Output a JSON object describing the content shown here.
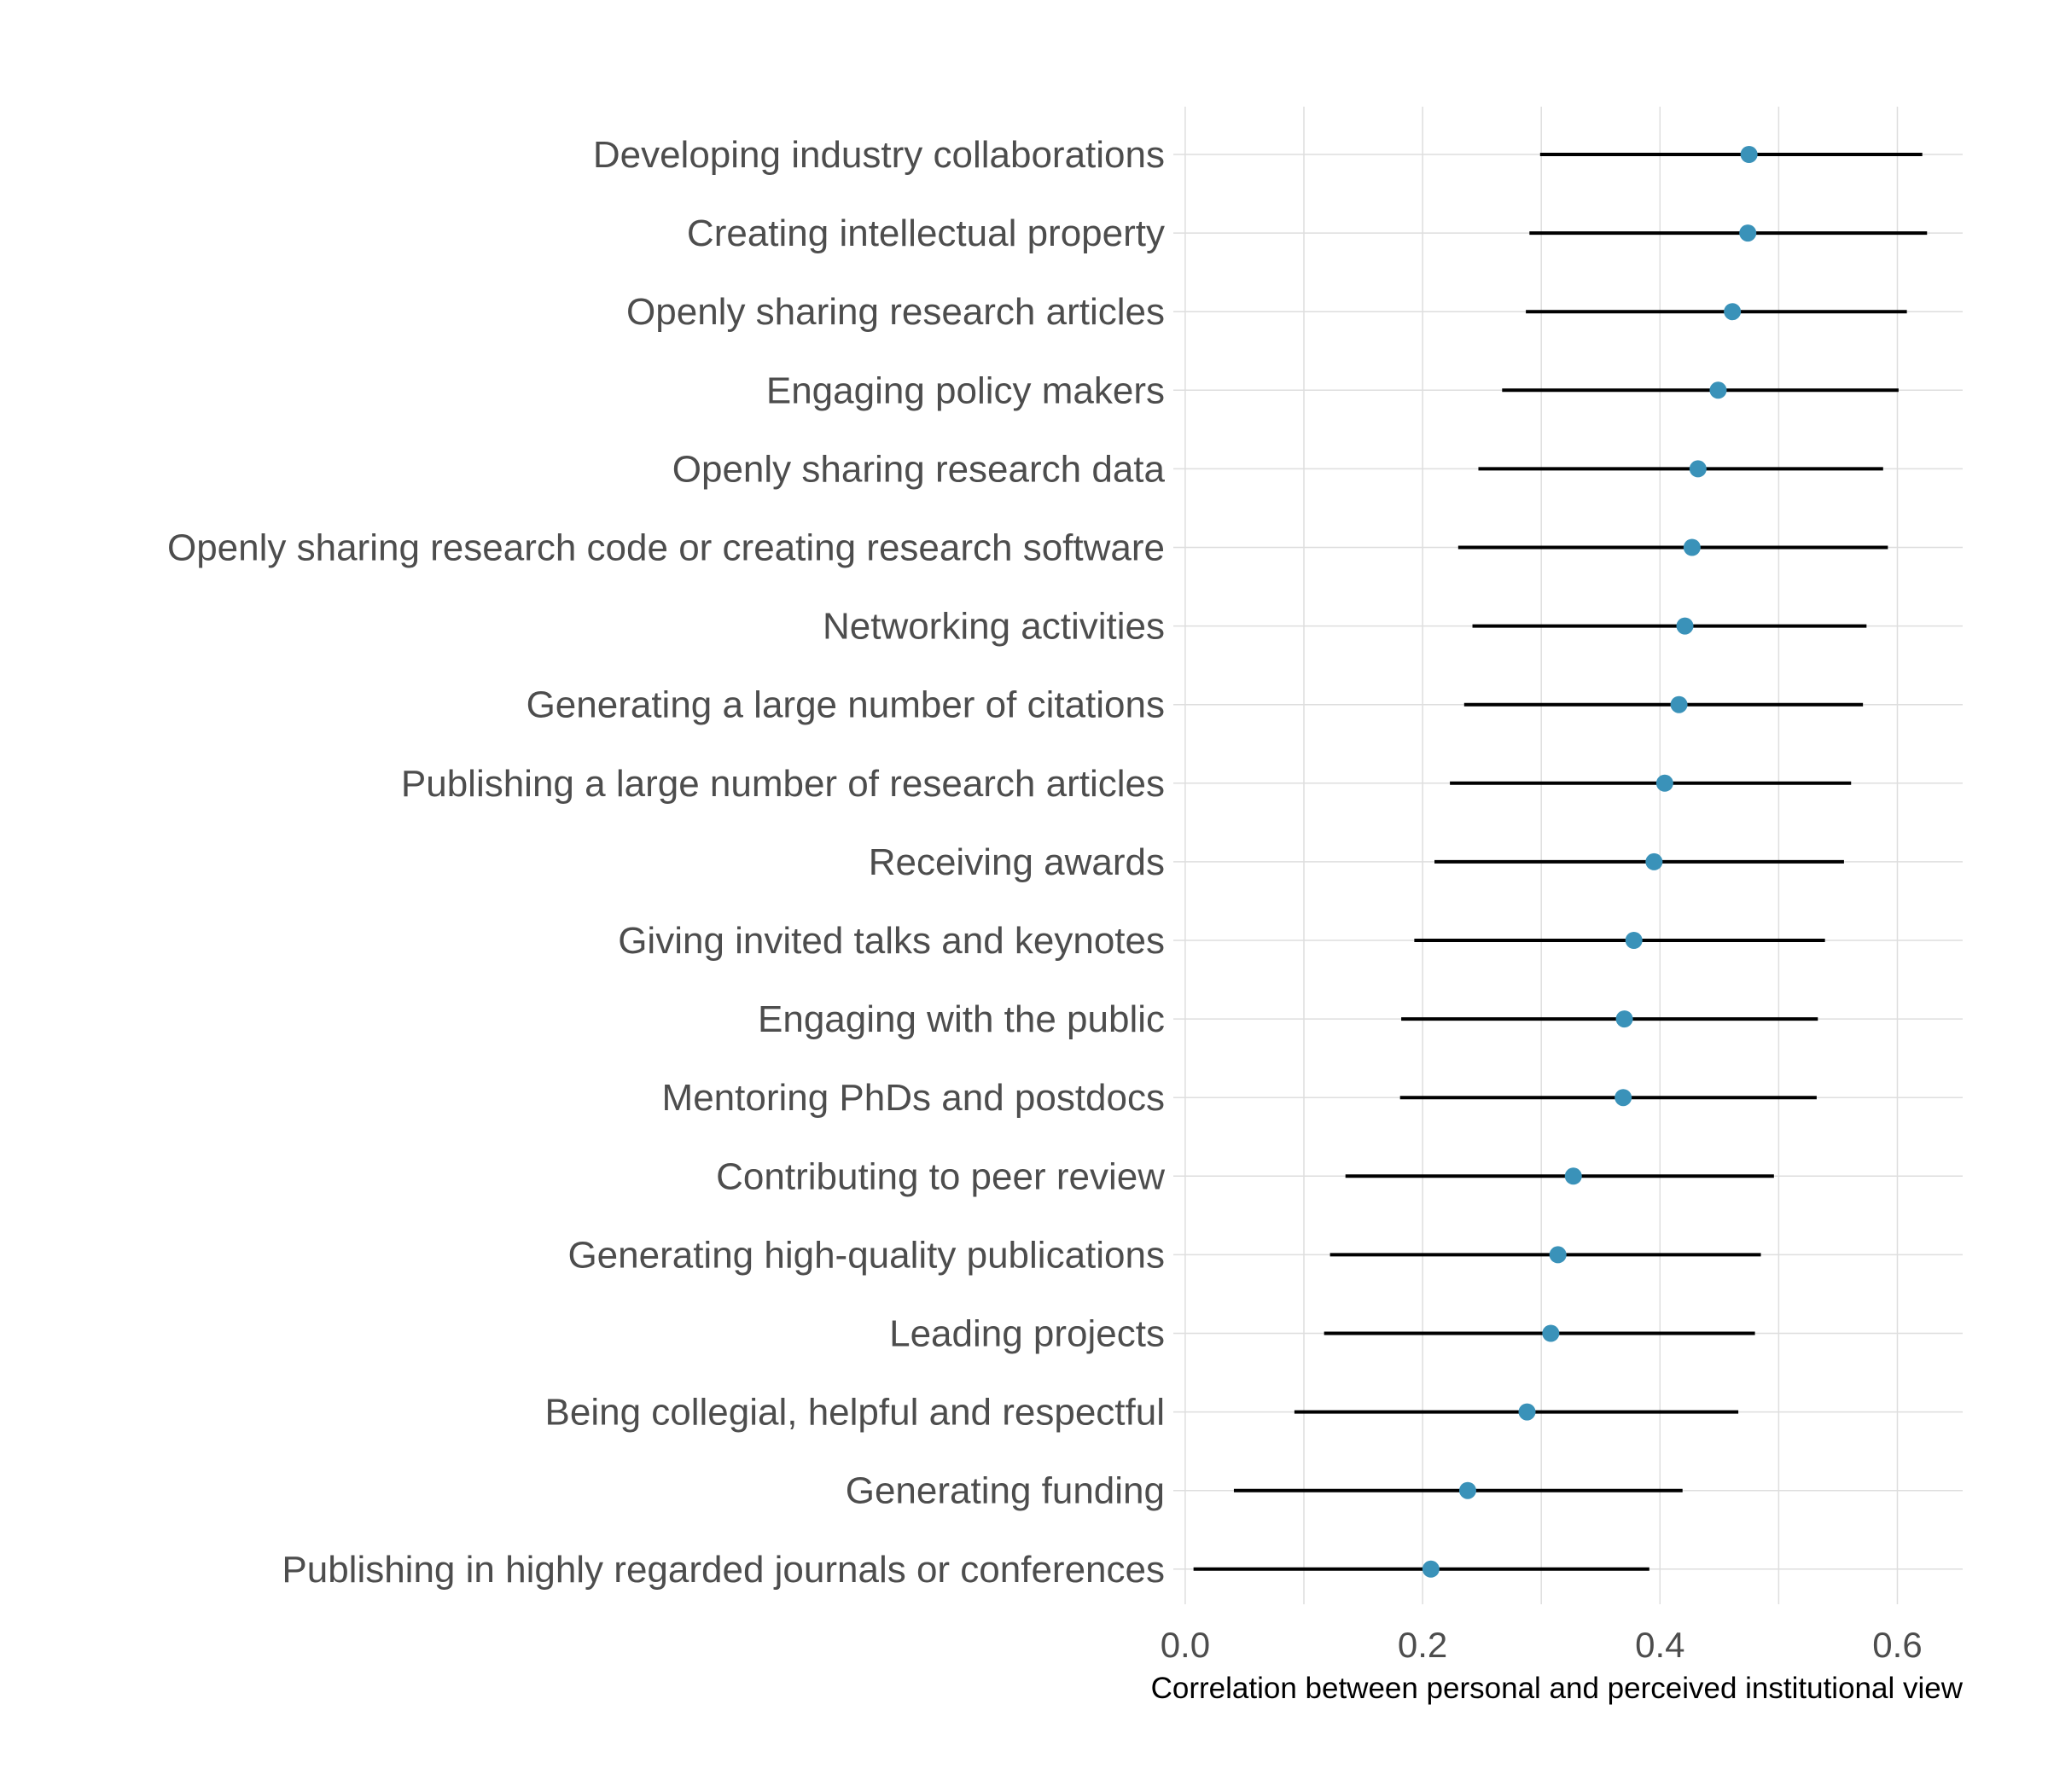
{
  "chart_data": {
    "type": "scatter",
    "title": "",
    "xlabel": "Correlation between personal and perceived institutional view",
    "ylabel": "",
    "xlim": [
      -0.01,
      0.655
    ],
    "xticks": [
      0.0,
      0.2,
      0.4,
      0.6
    ],
    "xtick_labels": [
      "0.0",
      "0.2",
      "0.4",
      "0.6"
    ],
    "grid": true,
    "colors": {
      "point": "#3a92b9",
      "interval": "#000000",
      "grid": "#dedede"
    },
    "categories": [
      "Developing industry collaborations",
      "Creating intellectual property",
      "Openly sharing research articles",
      "Engaging policy makers",
      "Openly sharing research data",
      "Openly sharing research code or creating research software",
      "Networking activities",
      "Generating a large number of citations",
      "Publishing a large number of research articles",
      "Receiving awards",
      "Giving invited talks and keynotes",
      "Engaging with the public",
      "Mentoring PhDs and postdocs",
      "Contributing to peer review",
      "Generating high-quality publications",
      "Leading projects",
      "Being collegial, helpful and respectful",
      "Generating funding",
      "Publishing in highly regarded journals or conferences"
    ],
    "values": [
      0.475,
      0.474,
      0.461,
      0.449,
      0.432,
      0.427,
      0.421,
      0.416,
      0.404,
      0.395,
      0.378,
      0.37,
      0.369,
      0.327,
      0.314,
      0.308,
      0.288,
      0.238,
      0.207
    ],
    "lower": [
      0.299,
      0.29,
      0.287,
      0.267,
      0.247,
      0.23,
      0.242,
      0.235,
      0.223,
      0.21,
      0.193,
      0.182,
      0.181,
      0.135,
      0.122,
      0.117,
      0.092,
      0.041,
      0.007
    ],
    "upper": [
      0.621,
      0.625,
      0.608,
      0.601,
      0.588,
      0.592,
      0.574,
      0.571,
      0.561,
      0.555,
      0.539,
      0.533,
      0.532,
      0.496,
      0.485,
      0.48,
      0.466,
      0.419,
      0.391
    ]
  }
}
